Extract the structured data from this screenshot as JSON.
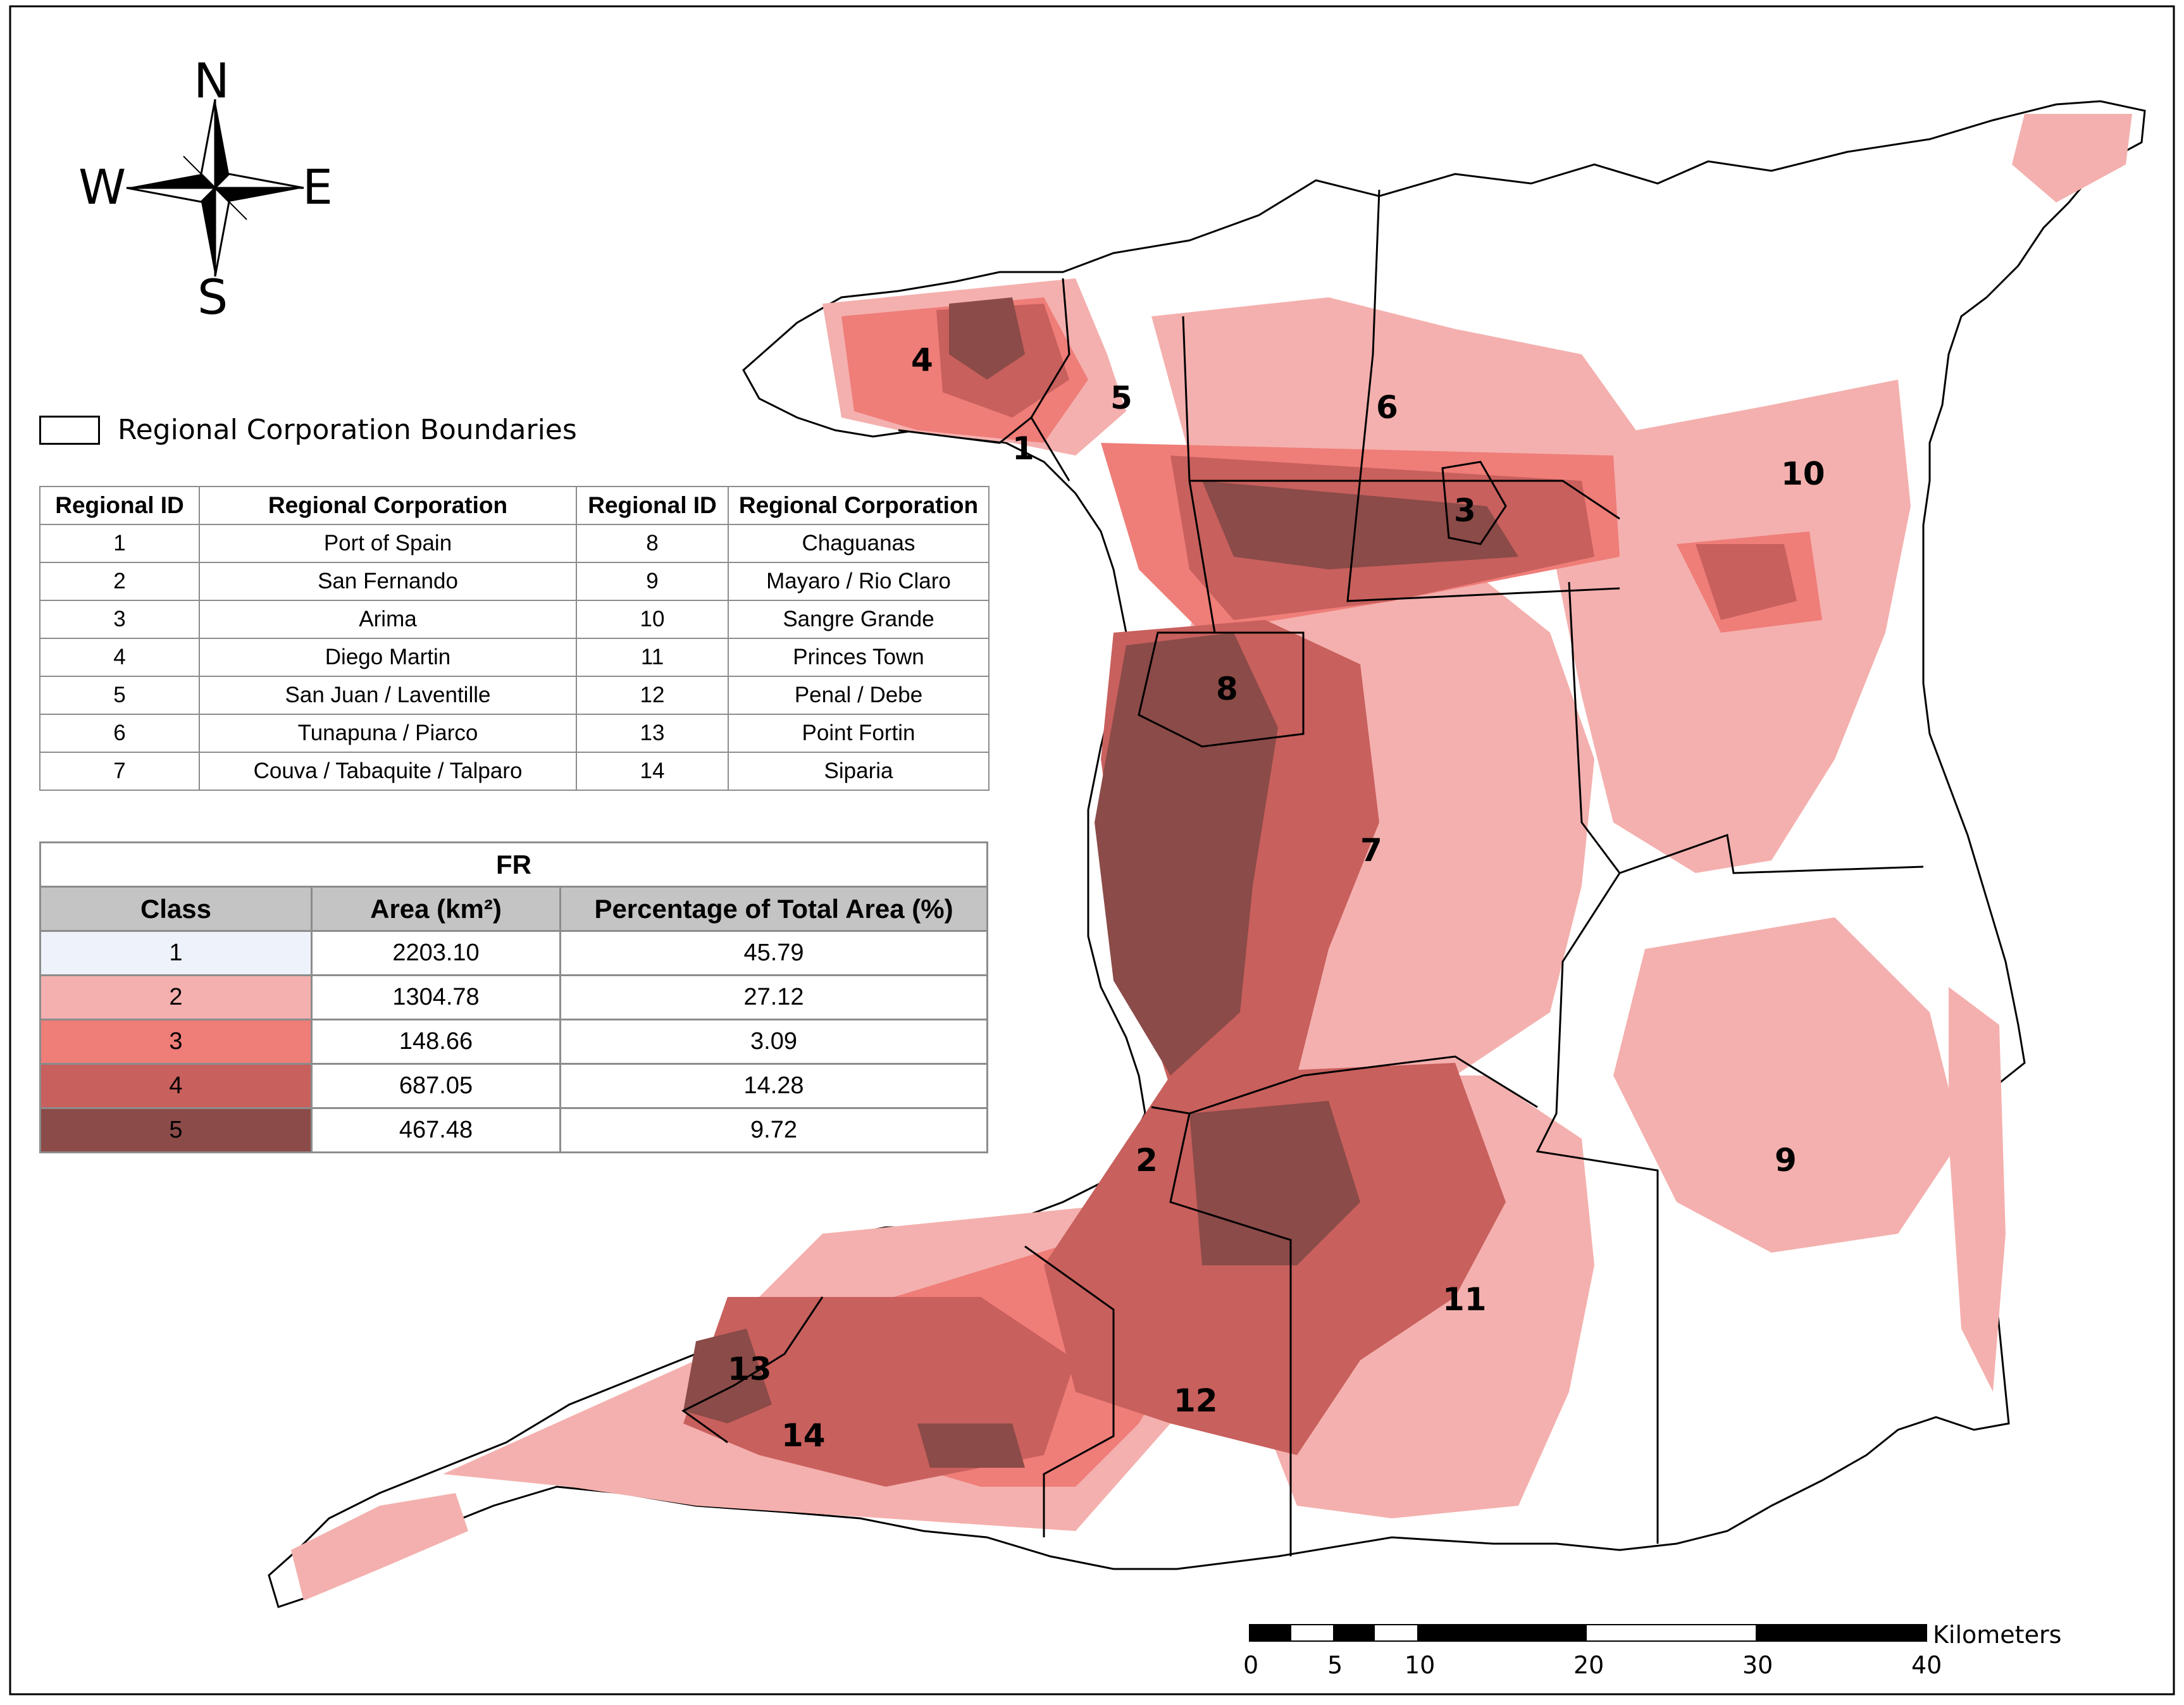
{
  "compass": {
    "north": "N",
    "south": "S",
    "east": "E",
    "west": "W"
  },
  "legend": {
    "boundary_label": "Regional Corporation Boundaries"
  },
  "id_table": {
    "headers": [
      "Regional ID",
      "Regional Corporation",
      "Regional ID",
      "Regional Corporation"
    ],
    "rows": [
      [
        "1",
        "Port of Spain",
        "8",
        "Chaguanas"
      ],
      [
        "2",
        "San Fernando",
        "9",
        "Mayaro / Rio Claro"
      ],
      [
        "3",
        "Arima",
        "10",
        "Sangre Grande"
      ],
      [
        "4",
        "Diego Martin",
        "11",
        "Princes Town"
      ],
      [
        "5",
        "San Juan / Laventille",
        "12",
        "Penal / Debe"
      ],
      [
        "6",
        "Tunapuna / Piarco",
        "13",
        "Point Fortin"
      ],
      [
        "7",
        "Couva / Tabaquite / Talparo",
        "14",
        "Siparia"
      ]
    ]
  },
  "fr_table": {
    "title": "FR",
    "headers": [
      "Class",
      "Area (km²)",
      "Percentage of Total Area (%)"
    ],
    "rows": [
      {
        "class": "1",
        "area": "2203.10",
        "pct": "45.79",
        "color": "#eef2fb"
      },
      {
        "class": "2",
        "area": "1304.78",
        "pct": "27.12",
        "color": "#f4b0ae"
      },
      {
        "class": "3",
        "area": "148.66",
        "pct": "3.09",
        "color": "#ef7d78"
      },
      {
        "class": "4",
        "area": "687.05",
        "pct": "14.28",
        "color": "#c8605d"
      },
      {
        "class": "5",
        "area": "467.48",
        "pct": "9.72",
        "color": "#8b4b48"
      }
    ]
  },
  "region_labels": [
    "1",
    "2",
    "3",
    "4",
    "5",
    "6",
    "7",
    "8",
    "9",
    "10",
    "11",
    "12",
    "13",
    "14"
  ],
  "scale_bar": {
    "ticks": [
      "0",
      "5",
      "10",
      "20",
      "30",
      "40"
    ],
    "unit": "Kilometers"
  }
}
